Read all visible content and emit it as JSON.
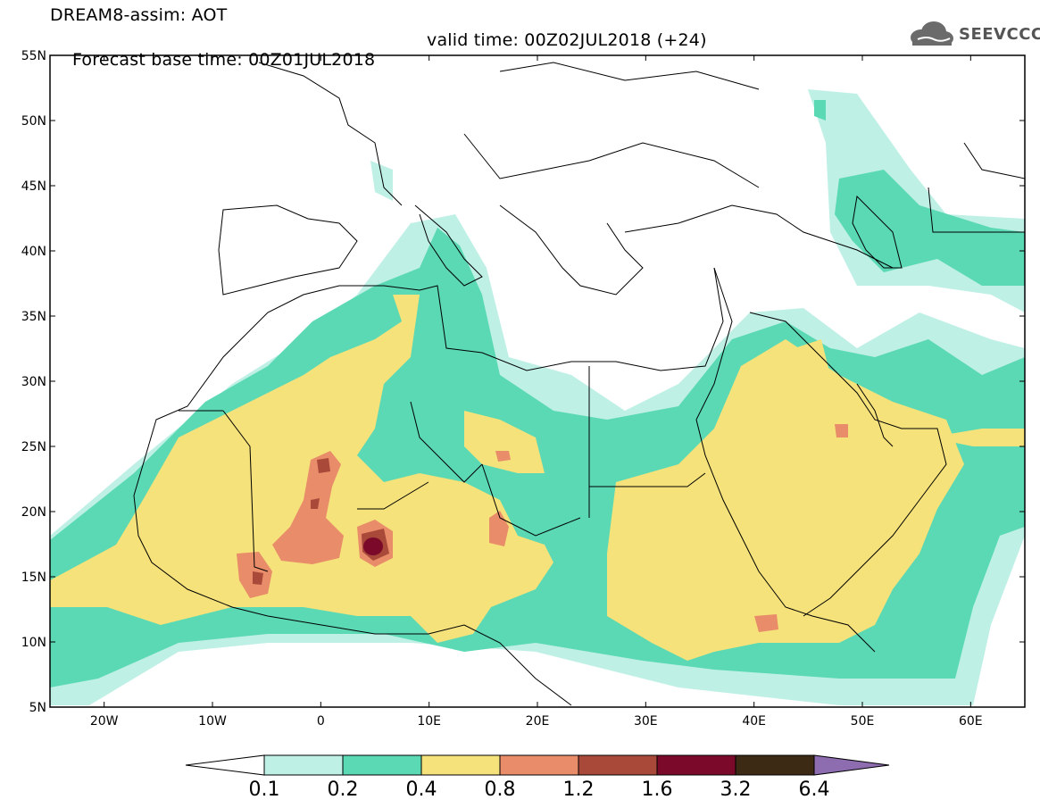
{
  "header": {
    "title": "DREAM8-assim: AOT",
    "base_time": "Forecast base time: 00Z01JUL2018",
    "valid_time": "valid time: 00Z02JUL2018 (+24)"
  },
  "logo": {
    "text": "SEEVCCC",
    "icon": "cloud-icon"
  },
  "map": {
    "lat_labels": [
      "55N",
      "50N",
      "45N",
      "40N",
      "35N",
      "30N",
      "25N",
      "20N",
      "15N",
      "10N",
      "5N"
    ],
    "lon_labels": [
      "20W",
      "10W",
      "0",
      "10E",
      "20E",
      "30E",
      "40E",
      "50E",
      "60E"
    ],
    "lat_range": [
      5,
      55
    ],
    "lon_range": [
      -25,
      65
    ]
  },
  "colorbar": {
    "levels": [
      "0.1",
      "0.2",
      "0.4",
      "0.8",
      "1.2",
      "1.6",
      "3.2",
      "6.4"
    ],
    "colors": [
      "#ffffff",
      "#bff0e6",
      "#5ad9b4",
      "#f5e27a",
      "#e88c6a",
      "#a8493a",
      "#7b0a2a",
      "#3c2a14",
      "#8e6cb0"
    ]
  }
}
